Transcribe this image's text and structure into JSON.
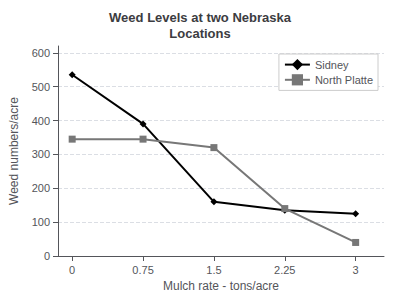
{
  "chart_data": {
    "type": "line",
    "title": "Weed Levels at two Nebraska\nLocations",
    "xlabel": "Mulch rate - tons/acre",
    "ylabel": "Weed numbers/acre",
    "x": [
      0,
      0.75,
      1.5,
      2.25,
      3
    ],
    "series": [
      {
        "name": "Sidney",
        "color": "#000000",
        "marker": "diamond",
        "values": [
          535,
          390,
          160,
          135,
          125
        ]
      },
      {
        "name": "North Platte",
        "color": "#777777",
        "marker": "square",
        "values": [
          345,
          345,
          320,
          140,
          40
        ]
      }
    ],
    "xlim": [
      -0.15,
      3.3
    ],
    "ylim": [
      0,
      620
    ],
    "xticks": [
      0,
      0.75,
      1.5,
      2.25,
      3
    ],
    "yticks": [
      0,
      100,
      200,
      300,
      400,
      500,
      600
    ],
    "grid": true,
    "legend": "upper right"
  }
}
